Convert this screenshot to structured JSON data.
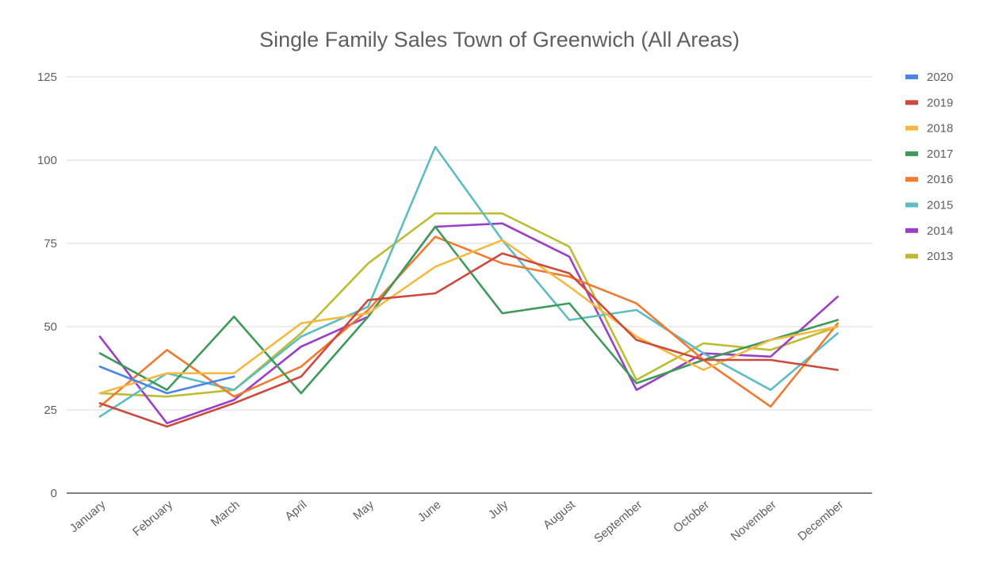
{
  "chart_data": {
    "type": "line",
    "title": "Single Family Sales Town of Greenwich (All Areas)",
    "xlabel": "",
    "ylabel": "",
    "categories": [
      "January",
      "February",
      "March",
      "April",
      "May",
      "June",
      "July",
      "August",
      "September",
      "October",
      "November",
      "December"
    ],
    "ylim": [
      0,
      125
    ],
    "yticks": [
      0,
      25,
      50,
      75,
      100,
      125
    ],
    "grid": true,
    "legend_position": "right",
    "series": [
      {
        "name": "2020",
        "color": "#4a86e8",
        "values": [
          38,
          30,
          35,
          null,
          null,
          null,
          null,
          null,
          null,
          null,
          null,
          null
        ]
      },
      {
        "name": "2019",
        "color": "#cc4a3e",
        "values": [
          27,
          20,
          27,
          35,
          58,
          60,
          72,
          66,
          46,
          40,
          40,
          37
        ]
      },
      {
        "name": "2018",
        "color": "#f4b942",
        "values": [
          30,
          36,
          36,
          51,
          54,
          68,
          76,
          62,
          47,
          37,
          46,
          50
        ]
      },
      {
        "name": "2017",
        "color": "#3f9a5a",
        "values": [
          42,
          31,
          53,
          30,
          53,
          80,
          54,
          57,
          33,
          40,
          46,
          52
        ]
      },
      {
        "name": "2016",
        "color": "#ef7a30",
        "values": [
          26,
          43,
          29,
          38,
          55,
          77,
          69,
          65,
          57,
          40,
          26,
          51
        ]
      },
      {
        "name": "2015",
        "color": "#5dbdc3",
        "values": [
          23,
          36,
          31,
          47,
          56,
          104,
          76,
          52,
          55,
          42,
          31,
          48
        ]
      },
      {
        "name": "2014",
        "color": "#9b3fc7",
        "values": [
          47,
          21,
          28,
          44,
          53,
          80,
          81,
          71,
          31,
          42,
          41,
          59
        ]
      },
      {
        "name": "2013",
        "color": "#bdbd34",
        "values": [
          30,
          29,
          31,
          48,
          69,
          84,
          84,
          74,
          34,
          45,
          43,
          50
        ]
      }
    ]
  }
}
